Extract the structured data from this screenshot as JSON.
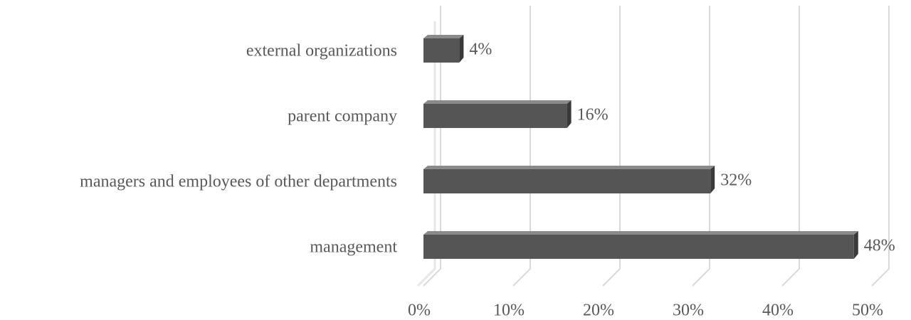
{
  "chart_data": {
    "type": "bar",
    "orientation": "horizontal",
    "categories": [
      "external organizations",
      "parent company",
      "managers and employees of other departments",
      "management"
    ],
    "values": [
      4,
      16,
      32,
      48
    ],
    "value_labels": [
      "4%",
      "16%",
      "32%",
      "48%"
    ],
    "color": "#555555",
    "xlim": [
      0,
      50
    ],
    "xticks": [
      {
        "value": 0,
        "label": "0%"
      },
      {
        "value": 10,
        "label": "10%"
      },
      {
        "value": 20,
        "label": "20%"
      },
      {
        "value": 30,
        "label": "30%"
      },
      {
        "value": 40,
        "label": "40%"
      },
      {
        "value": 50,
        "label": "50%"
      }
    ],
    "grid": true
  }
}
